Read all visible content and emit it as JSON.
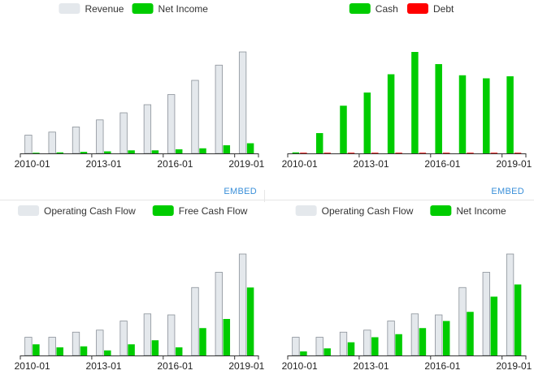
{
  "charts": [
    {
      "chart_data": {
        "type": "bar",
        "x": [
          "2010-01",
          "2011-01",
          "2012-01",
          "2013-01",
          "2014-01",
          "2015-01",
          "2016-01",
          "2017-01",
          "2018-01",
          "2019-01"
        ],
        "xticks": [
          "2010-01",
          "2013-01",
          "2016-01",
          "2019-01"
        ],
        "ylim": [
          0,
          100
        ],
        "series": [
          {
            "name": "Revenue",
            "color": "#e4e8ec",
            "values": [
              18,
              21,
              26,
              33,
              40,
              48,
              58,
              72,
              87,
              100
            ]
          },
          {
            "name": "Net Income",
            "color": "#00cc00",
            "values": [
              0.5,
              1,
              1.5,
              2,
              3,
              3,
              4,
              5,
              8,
              10
            ]
          }
        ]
      },
      "embed": "EMBED"
    },
    {
      "chart_data": {
        "type": "bar",
        "x": [
          "2010-01",
          "2011-01",
          "2012-01",
          "2013-01",
          "2014-01",
          "2015-01",
          "2016-01",
          "2017-01",
          "2018-01",
          "2019-01"
        ],
        "xticks": [
          "2010-01",
          "2013-01",
          "2016-01",
          "2019-01"
        ],
        "ylim": [
          0,
          100
        ],
        "series": [
          {
            "name": "Cash",
            "color": "#00cc00",
            "values": [
              1,
              20,
              47,
              60,
              78,
              100,
              88,
              77,
              74,
              76
            ]
          },
          {
            "name": "Debt",
            "color": "#ff0000",
            "values": [
              0,
              0,
              0,
              0,
              0,
              0,
              0,
              0,
              0,
              0
            ]
          }
        ]
      },
      "embed": "EMBED"
    },
    {
      "chart_data": {
        "type": "bar",
        "x": [
          "2010-01",
          "2011-01",
          "2012-01",
          "2013-01",
          "2014-01",
          "2015-01",
          "2016-01",
          "2017-01",
          "2018-01",
          "2019-01"
        ],
        "xticks": [
          "2010-01",
          "2013-01",
          "2016-01",
          "2019-01"
        ],
        "ylim": [
          0,
          100
        ],
        "series": [
          {
            "name": "Operating Cash Flow",
            "color": "#e4e8ec",
            "values": [
              18,
              18,
              23,
              25,
              34,
              41,
              40,
              67,
              82,
              100
            ]
          },
          {
            "name": "Free Cash Flow",
            "color": "#00cc00",
            "values": [
              11,
              8,
              9,
              5,
              11,
              15,
              8,
              27,
              36,
              67
            ]
          }
        ]
      }
    },
    {
      "chart_data": {
        "type": "bar",
        "x": [
          "2010-01",
          "2011-01",
          "2012-01",
          "2013-01",
          "2014-01",
          "2015-01",
          "2016-01",
          "2017-01",
          "2018-01",
          "2019-01"
        ],
        "xticks": [
          "2010-01",
          "2013-01",
          "2016-01",
          "2019-01"
        ],
        "ylim": [
          0,
          100
        ],
        "series": [
          {
            "name": "Operating Cash Flow",
            "color": "#e4e8ec",
            "values": [
              18,
              18,
              23,
              25,
              34,
              41,
              40,
              67,
              82,
              100
            ]
          },
          {
            "name": "Net Income",
            "color": "#00cc00",
            "values": [
              4,
              7,
              13,
              18,
              21,
              27,
              34,
              43,
              58,
              70
            ]
          }
        ]
      }
    }
  ]
}
